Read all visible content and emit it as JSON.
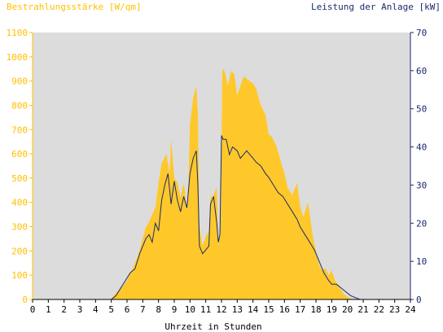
{
  "title_left": "Bestrahlungsstärke [W/qm]",
  "title_right": "Leistung der Anlage [kW]",
  "x_axis_label": "Uhrzeit in Stunden",
  "colors": {
    "plot_bg": "#dcdcdc",
    "irradiance": "#ffc82a",
    "power": "#1a2a6c",
    "left_text": "#ffc000",
    "right_text": "#1a2a6c"
  },
  "chart_data": {
    "type": "area",
    "x_range": [
      0,
      24
    ],
    "x_ticks": [
      0,
      1,
      2,
      3,
      4,
      5,
      6,
      7,
      8,
      9,
      10,
      11,
      12,
      13,
      14,
      15,
      16,
      17,
      18,
      19,
      20,
      21,
      22,
      23,
      24
    ],
    "y_left": {
      "label": "Bestrahlungsstärke [W/qm]",
      "range": [
        0,
        1100
      ],
      "ticks": [
        0,
        100,
        200,
        300,
        400,
        500,
        600,
        700,
        800,
        900,
        1000,
        1100
      ]
    },
    "y_right": {
      "label": "Leistung der Anlage [kW]",
      "range": [
        0,
        70
      ],
      "ticks": [
        0,
        10,
        20,
        30,
        40,
        50,
        60,
        70
      ]
    },
    "series": [
      {
        "name": "Bestrahlungsstärke [W/qm]",
        "axis": "left",
        "type": "area",
        "x": [
          0,
          5.0,
          5.2,
          5.5,
          5.8,
          6.0,
          6.3,
          6.5,
          6.7,
          7.0,
          7.2,
          7.4,
          7.6,
          7.8,
          8.0,
          8.2,
          8.5,
          8.7,
          8.8,
          9.0,
          9.2,
          9.4,
          9.6,
          9.8,
          9.9,
          10.0,
          10.2,
          10.4,
          10.5,
          10.6,
          10.8,
          11.0,
          11.2,
          11.3,
          11.5,
          11.7,
          11.8,
          11.95,
          12.05,
          12.2,
          12.4,
          12.6,
          12.8,
          13.0,
          13.2,
          13.4,
          13.6,
          13.8,
          14.0,
          14.2,
          14.5,
          14.8,
          15.0,
          15.2,
          15.5,
          15.8,
          16.0,
          16.2,
          16.5,
          16.8,
          17.0,
          17.2,
          17.5,
          17.8,
          18.0,
          18.2,
          18.4,
          18.6,
          18.8,
          19.0,
          19.2,
          19.4,
          19.6,
          19.8,
          20.0,
          20.2,
          20.4,
          20.6,
          20.8,
          21.0,
          24
        ],
        "y": [
          0,
          0,
          20,
          40,
          60,
          80,
          120,
          150,
          180,
          250,
          300,
          320,
          350,
          380,
          480,
          560,
          600,
          520,
          660,
          500,
          480,
          420,
          480,
          380,
          470,
          720,
          830,
          880,
          760,
          300,
          220,
          260,
          280,
          420,
          430,
          460,
          220,
          300,
          950,
          940,
          880,
          940,
          930,
          840,
          880,
          920,
          910,
          900,
          890,
          870,
          800,
          760,
          680,
          670,
          630,
          560,
          520,
          460,
          430,
          480,
          380,
          340,
          400,
          260,
          200,
          140,
          120,
          130,
          100,
          120,
          80,
          60,
          40,
          20,
          10,
          5,
          0,
          0,
          0,
          0,
          0
        ]
      },
      {
        "name": "Leistung der Anlage [kW]",
        "axis": "right",
        "type": "line",
        "x": [
          0,
          5.0,
          5.3,
          5.6,
          5.9,
          6.2,
          6.5,
          6.8,
          7.0,
          7.2,
          7.4,
          7.6,
          7.8,
          8.0,
          8.2,
          8.4,
          8.6,
          8.8,
          9.0,
          9.2,
          9.4,
          9.6,
          9.8,
          10.0,
          10.2,
          10.4,
          10.5,
          10.6,
          10.8,
          11.0,
          11.2,
          11.3,
          11.5,
          11.7,
          11.8,
          11.9,
          12.0,
          12.1,
          12.3,
          12.5,
          12.7,
          13.0,
          13.2,
          13.4,
          13.6,
          13.8,
          14.0,
          14.2,
          14.5,
          14.8,
          15.0,
          15.3,
          15.6,
          15.9,
          16.2,
          16.5,
          16.8,
          17.0,
          17.3,
          17.6,
          17.9,
          18.2,
          18.5,
          18.8,
          19.0,
          19.3,
          19.6,
          19.9,
          20.2,
          20.5,
          20.8,
          21.0,
          24
        ],
        "y": [
          0,
          0,
          1,
          3,
          5,
          7,
          8,
          12,
          14,
          16,
          17,
          15,
          20,
          18,
          26,
          30,
          33,
          25,
          31,
          26,
          23,
          27,
          24,
          33,
          37,
          39,
          30,
          14,
          12,
          13,
          14,
          25,
          27,
          20,
          15,
          17,
          43,
          42,
          42,
          38,
          40,
          39,
          37,
          38,
          39,
          38,
          37,
          36,
          35,
          33,
          32,
          30,
          28,
          27,
          25,
          23,
          21,
          19,
          17,
          15,
          13,
          10,
          7,
          5,
          4,
          4,
          3,
          2,
          1,
          0.5,
          0,
          0,
          0
        ]
      }
    ]
  }
}
